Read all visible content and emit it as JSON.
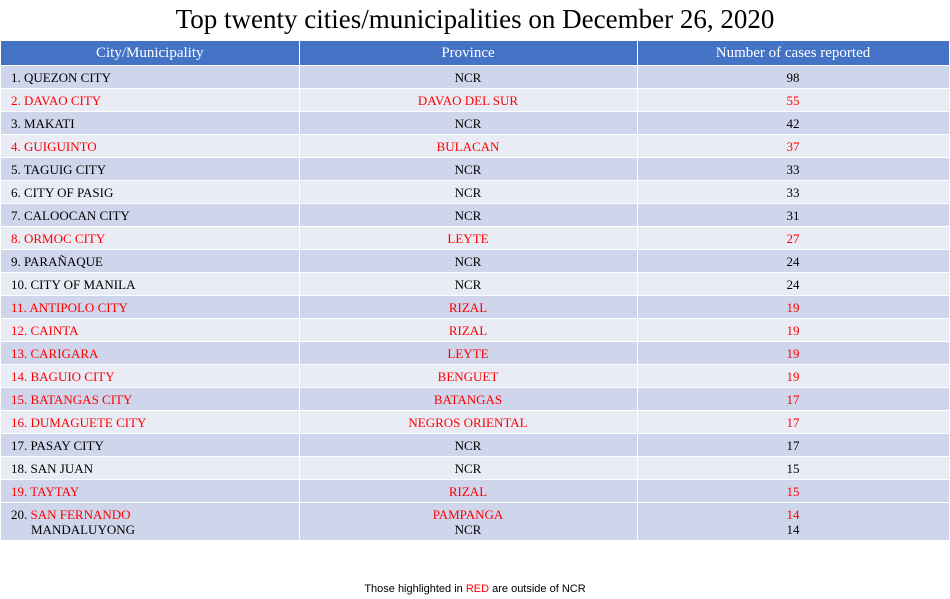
{
  "title": "Top twenty cities/municipalities on December 26, 2020",
  "headers": [
    "City/Municipality",
    "Province",
    "Number of cases reported"
  ],
  "rows": [
    {
      "num": "1.",
      "city": "QUEZON CITY",
      "province": "NCR",
      "cases": "98",
      "red": false
    },
    {
      "num": "2.",
      "city": "DAVAO CITY",
      "province": "DAVAO DEL SUR",
      "cases": "55",
      "red": true
    },
    {
      "num": "3.",
      "city": "MAKATI",
      "province": "NCR",
      "cases": "42",
      "red": false
    },
    {
      "num": "4.",
      "city": "GUIGUINTO",
      "province": "BULACAN",
      "cases": "37",
      "red": true
    },
    {
      "num": "5.",
      "city": "TAGUIG CITY",
      "province": "NCR",
      "cases": "33",
      "red": false
    },
    {
      "num": "6.",
      "city": "CITY OF PASIG",
      "province": "NCR",
      "cases": "33",
      "red": false
    },
    {
      "num": "7.",
      "city": "CALOOCAN CITY",
      "province": "NCR",
      "cases": "31",
      "red": false
    },
    {
      "num": "8.",
      "city": "ORMOC CITY",
      "province": "LEYTE",
      "cases": "27",
      "red": true
    },
    {
      "num": "9.",
      "city": "PARAÑAQUE",
      "province": "NCR",
      "cases": "24",
      "red": false
    },
    {
      "num": "10.",
      "city": "CITY OF MANILA",
      "province": "NCR",
      "cases": "24",
      "red": false
    },
    {
      "num": "11.",
      "city": "ANTIPOLO CITY",
      "province": "RIZAL",
      "cases": "19",
      "red": true
    },
    {
      "num": "12.",
      "city": "CAINTA",
      "province": "RIZAL",
      "cases": "19",
      "red": true
    },
    {
      "num": "13.",
      "city": "CARIGARA",
      "province": "LEYTE",
      "cases": "19",
      "red": true
    },
    {
      "num": "14.",
      "city": "BAGUIO CITY",
      "province": "BENGUET",
      "cases": "19",
      "red": true
    },
    {
      "num": "15.",
      "city": "BATANGAS CITY",
      "province": "BATANGAS",
      "cases": "17",
      "red": true
    },
    {
      "num": "16.",
      "city": "DUMAGUETE CITY",
      "province": "NEGROS ORIENTAL",
      "cases": "17",
      "red": true
    },
    {
      "num": "17.",
      "city": "PASAY CITY",
      "province": "NCR",
      "cases": "17",
      "red": false
    },
    {
      "num": "18.",
      "city": "SAN JUAN",
      "province": "NCR",
      "cases": "15",
      "red": false
    },
    {
      "num": "19.",
      "city": "TAYTAY",
      "province": "RIZAL",
      "cases": "15",
      "red": true
    }
  ],
  "last_row": {
    "num": "20.",
    "city1": "SAN FERNANDO",
    "province1": "PAMPANGA",
    "cases1": "14",
    "city2": "MANDALUYONG",
    "province2": "NCR",
    "cases2": "14"
  },
  "note": {
    "before": "Those highlighted in ",
    "highlight": "RED",
    "after": " are outside of NCR"
  },
  "colors": {
    "header_bg": "#4472c4",
    "band_dark": "#cfd5ea",
    "band_light": "#e9ebf5",
    "highlight": "#ff0000"
  }
}
